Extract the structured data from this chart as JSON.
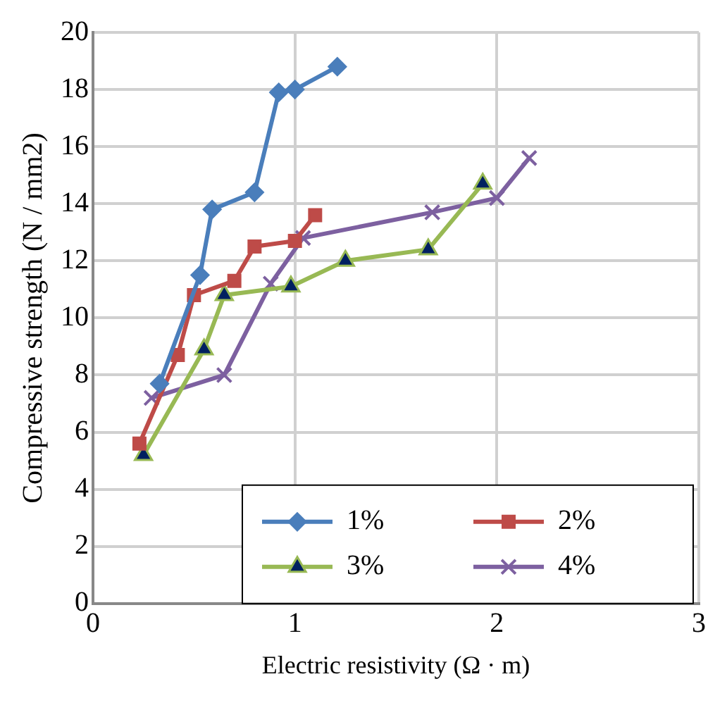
{
  "chart_data": {
    "type": "line",
    "xlabel": "Electric resistivity (Ω · m)",
    "ylabel": "Compressive strength (N / mm2)",
    "xlim": [
      0,
      3
    ],
    "xticks": [
      0,
      1,
      2,
      3
    ],
    "ylim": [
      0,
      20
    ],
    "yticks": [
      0,
      2,
      4,
      6,
      8,
      10,
      12,
      14,
      16,
      18,
      20
    ],
    "grid": true,
    "legend": "bottom right",
    "series": [
      {
        "name": "1%",
        "color": "#4a7ebb",
        "marker": "diamond",
        "x": [
          0.33,
          0.53,
          0.59,
          0.8,
          0.92,
          1.0,
          1.21
        ],
        "values": [
          7.7,
          11.5,
          13.8,
          14.4,
          17.9,
          18.0,
          18.8
        ]
      },
      {
        "name": "2%",
        "color": "#be4b48",
        "marker": "square",
        "x": [
          0.23,
          0.42,
          0.5,
          0.7,
          0.8,
          1.0,
          1.1
        ],
        "values": [
          5.6,
          8.7,
          10.8,
          11.3,
          12.5,
          12.7,
          13.6
        ]
      },
      {
        "name": "3%",
        "color": "#98b954",
        "marker": "triangle",
        "x": [
          0.25,
          0.55,
          0.65,
          0.98,
          1.25,
          1.66,
          1.93
        ],
        "values": [
          5.2,
          8.9,
          10.8,
          11.1,
          12.0,
          12.4,
          14.7
        ]
      },
      {
        "name": "4%",
        "color": "#7d60a0",
        "marker": "cross",
        "x": [
          0.29,
          0.65,
          0.88,
          1.04,
          1.68,
          2.0,
          2.16
        ],
        "values": [
          7.2,
          8.0,
          11.2,
          12.8,
          13.7,
          14.2,
          15.6
        ]
      }
    ]
  }
}
